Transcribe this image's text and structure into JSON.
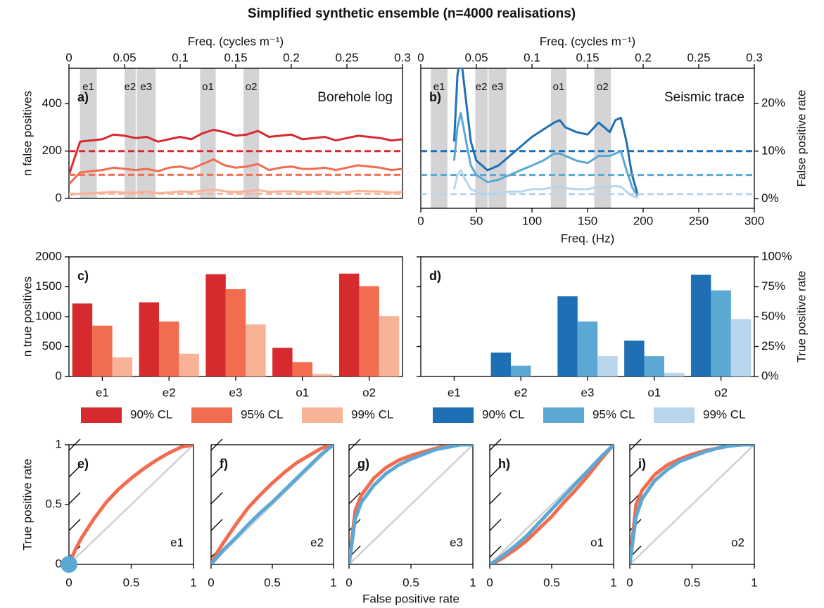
{
  "title": "Simplified synthetic ensemble (n=4000 realisations)",
  "chart_data": [
    {
      "type": "line",
      "panel_label": "a)",
      "title": "Borehole log",
      "xlabel": "Freq. (cycles m⁻¹)",
      "x_axis_side": "top",
      "xlim": [
        0,
        0.3
      ],
      "xticks": [
        0,
        0.05,
        0.1,
        0.15,
        0.2,
        0.25,
        0.3
      ],
      "ylabel": "n false positives",
      "y_axis_side": "left",
      "ylim": [
        0,
        550
      ],
      "yticks": [
        0,
        200,
        400
      ],
      "bands": [
        {
          "label": "e1",
          "range": [
            0.01,
            0.025
          ]
        },
        {
          "label": "e2",
          "range": [
            0.05,
            0.06
          ]
        },
        {
          "label": "e3",
          "range": [
            0.061,
            0.078
          ]
        },
        {
          "label": "o1",
          "range": [
            0.118,
            0.132
          ]
        },
        {
          "label": "o2",
          "range": [
            0.157,
            0.171
          ]
        }
      ],
      "x": [
        0,
        0.01,
        0.02,
        0.03,
        0.04,
        0.05,
        0.06,
        0.07,
        0.08,
        0.09,
        0.1,
        0.11,
        0.12,
        0.13,
        0.14,
        0.15,
        0.16,
        0.17,
        0.18,
        0.19,
        0.2,
        0.21,
        0.22,
        0.23,
        0.24,
        0.25,
        0.26,
        0.27,
        0.28,
        0.29,
        0.3
      ],
      "series": [
        {
          "name": "90% CL",
          "color": "#d62a2e",
          "threshold": 200,
          "values": [
            100,
            240,
            245,
            250,
            270,
            265,
            255,
            260,
            240,
            250,
            260,
            250,
            275,
            290,
            280,
            265,
            270,
            285,
            260,
            265,
            270,
            250,
            255,
            260,
            245,
            255,
            265,
            260,
            255,
            245,
            250
          ]
        },
        {
          "name": "95% CL",
          "color": "#f26c4f",
          "threshold": 100,
          "values": [
            60,
            110,
            115,
            120,
            130,
            125,
            120,
            125,
            115,
            130,
            135,
            125,
            145,
            165,
            140,
            130,
            135,
            145,
            120,
            130,
            135,
            125,
            125,
            130,
            120,
            130,
            140,
            135,
            130,
            120,
            125
          ]
        },
        {
          "name": "99% CL",
          "color": "#f8b397",
          "threshold": 20,
          "values": [
            15,
            20,
            22,
            25,
            28,
            25,
            25,
            30,
            22,
            25,
            30,
            28,
            32,
            38,
            30,
            28,
            30,
            35,
            28,
            30,
            30,
            28,
            28,
            30,
            25,
            28,
            32,
            30,
            30,
            25,
            28
          ]
        }
      ]
    },
    {
      "type": "line",
      "panel_label": "b)",
      "title": "Seismic trace",
      "xlabel": "Freq. (Hz)",
      "x_axis_side": "bottom",
      "xlim": [
        0,
        300
      ],
      "xticks": [
        0,
        50,
        100,
        150,
        200,
        250,
        300
      ],
      "x2label": "Freq. (cycles m⁻¹)",
      "x2lim": [
        0,
        0.3
      ],
      "x2ticks": [
        0,
        0.05,
        0.1,
        0.15,
        0.2,
        0.25,
        0.3
      ],
      "ylabel": "False positive rate",
      "y_axis_side": "right",
      "ylim": [
        -2,
        27.4
      ],
      "yticks": [
        {
          "value": 0,
          "label": "0%"
        },
        {
          "value": 10,
          "label": "10%"
        },
        {
          "value": 20,
          "label": "20%"
        }
      ],
      "bands": [
        {
          "label": "e1",
          "range": [
            9,
            24
          ]
        },
        {
          "label": "e2",
          "range": [
            49,
            60
          ]
        },
        {
          "label": "e3",
          "range": [
            61,
            77
          ]
        },
        {
          "label": "o1",
          "range": [
            117,
            131
          ]
        },
        {
          "label": "o2",
          "range": [
            156,
            171
          ]
        }
      ],
      "x": [
        30,
        33,
        36,
        40,
        45,
        50,
        60,
        70,
        80,
        90,
        100,
        110,
        120,
        125,
        130,
        140,
        150,
        160,
        170,
        175,
        180,
        185,
        190,
        195
      ],
      "series": [
        {
          "name": "90% CL",
          "color": "#1f6fb4",
          "threshold": 10,
          "values": [
            12,
            26,
            30,
            22,
            12,
            8,
            6,
            7,
            9,
            11,
            13,
            14.5,
            16,
            16.5,
            15,
            14,
            13.5,
            16,
            14,
            16.5,
            17,
            12,
            5,
            1
          ]
        },
        {
          "name": "95% CL",
          "color": "#5ba8d4",
          "threshold": 5,
          "values": [
            8,
            15,
            18,
            13,
            7,
            5,
            3.5,
            4,
            5,
            6,
            7,
            8,
            9.5,
            9.5,
            9,
            8,
            7.5,
            9,
            9,
            9.5,
            10,
            6,
            2.5,
            0.5
          ]
        },
        {
          "name": "99% CL",
          "color": "#b8d5eb",
          "threshold": 1,
          "values": [
            2,
            5,
            6,
            4,
            2,
            1.5,
            1,
            1.2,
            1.5,
            1.5,
            2,
            2,
            2.5,
            2.5,
            2.2,
            2,
            2,
            2.5,
            2.5,
            2.7,
            2.5,
            1.5,
            0.6,
            0.2
          ]
        }
      ]
    },
    {
      "type": "bar",
      "panel_label": "c)",
      "ylabel": "n true positives",
      "y_axis_side": "left",
      "ylim": [
        0,
        2000
      ],
      "yticks": [
        0,
        500,
        1000,
        1500,
        2000
      ],
      "categories": [
        "e1",
        "e2",
        "e3",
        "o1",
        "o2"
      ],
      "series": [
        {
          "name": "90% CL",
          "color": "#d62a2e",
          "values": [
            1220,
            1240,
            1710,
            480,
            1720
          ]
        },
        {
          "name": "95% CL",
          "color": "#f26c4f",
          "values": [
            850,
            920,
            1460,
            240,
            1510
          ]
        },
        {
          "name": "99% CL",
          "color": "#f8b397",
          "values": [
            320,
            380,
            870,
            40,
            1010
          ]
        }
      ]
    },
    {
      "type": "bar",
      "panel_label": "d)",
      "ylabel": "True positive rate",
      "y_axis_side": "right",
      "ylim": [
        0,
        100
      ],
      "yticks": [
        {
          "value": 0,
          "label": "0%"
        },
        {
          "value": 25,
          "label": "25%"
        },
        {
          "value": 50,
          "label": "50%"
        },
        {
          "value": 75,
          "label": "75%"
        },
        {
          "value": 100,
          "label": "100%"
        }
      ],
      "categories": [
        "e1",
        "e2",
        "e3",
        "o1",
        "o2"
      ],
      "series": [
        {
          "name": "90% CL",
          "color": "#1f6fb4",
          "values": [
            0,
            20,
            67,
            30,
            85
          ]
        },
        {
          "name": "95% CL",
          "color": "#5ba8d4",
          "values": [
            0,
            9,
            46,
            17,
            72
          ]
        },
        {
          "name": "99% CL",
          "color": "#b8d5eb",
          "values": [
            0,
            0,
            17,
            3,
            48
          ]
        }
      ]
    },
    {
      "type": "line",
      "panel_label": "e)",
      "title": "e1",
      "ylabel": "True positive rate",
      "y_axis_side": "left",
      "xlim": [
        0,
        1
      ],
      "xticks": [
        0,
        0.5,
        1
      ],
      "ylim": [
        0,
        1
      ],
      "yticks": [
        0,
        0.5,
        1
      ],
      "x": [
        0,
        0.05,
        0.1,
        0.2,
        0.3,
        0.4,
        0.5,
        0.6,
        0.7,
        0.8,
        0.9,
        1
      ],
      "series": [
        {
          "color": "#f26c4f",
          "values": [
            0,
            0.12,
            0.22,
            0.38,
            0.52,
            0.63,
            0.72,
            0.8,
            0.87,
            0.93,
            0.98,
            1
          ]
        },
        {
          "color": "#5ba8d4",
          "x": [
            0
          ],
          "values": [
            0
          ]
        }
      ]
    },
    {
      "type": "line",
      "panel_label": "f)",
      "title": "e2",
      "xlim": [
        0,
        1
      ],
      "xticks": [
        0,
        0.5,
        1
      ],
      "ylim": [
        0,
        1
      ],
      "x": [
        0,
        0.05,
        0.1,
        0.2,
        0.3,
        0.4,
        0.5,
        0.6,
        0.7,
        0.8,
        0.9,
        1
      ],
      "series": [
        {
          "color": "#f26c4f",
          "values": [
            0,
            0.1,
            0.18,
            0.33,
            0.47,
            0.58,
            0.68,
            0.77,
            0.85,
            0.91,
            0.97,
            1
          ]
        },
        {
          "color": "#5ba8d4",
          "values": [
            0,
            0.06,
            0.12,
            0.22,
            0.33,
            0.43,
            0.52,
            0.62,
            0.72,
            0.82,
            0.92,
            1
          ]
        }
      ]
    },
    {
      "type": "line",
      "panel_label": "g)",
      "title": "e3",
      "xlabel": "False positive rate",
      "x_axis_side": "bottom",
      "xlim": [
        0,
        1
      ],
      "xticks": [
        0,
        0.5,
        1
      ],
      "ylim": [
        0,
        1
      ],
      "x": [
        0,
        0.05,
        0.1,
        0.2,
        0.3,
        0.4,
        0.5,
        0.6,
        0.7,
        0.8,
        0.9,
        1
      ],
      "series": [
        {
          "color": "#f26c4f",
          "values": [
            0,
            0.45,
            0.58,
            0.72,
            0.81,
            0.87,
            0.91,
            0.94,
            0.97,
            0.99,
            1,
            1
          ]
        },
        {
          "color": "#5ba8d4",
          "values": [
            0,
            0.38,
            0.52,
            0.66,
            0.76,
            0.83,
            0.88,
            0.92,
            0.96,
            0.98,
            1,
            1
          ]
        }
      ]
    },
    {
      "type": "line",
      "panel_label": "h)",
      "title": "o1",
      "xlim": [
        0,
        1
      ],
      "xticks": [
        0,
        0.5,
        1
      ],
      "ylim": [
        0,
        1
      ],
      "x": [
        0,
        0.05,
        0.1,
        0.2,
        0.3,
        0.4,
        0.5,
        0.6,
        0.7,
        0.8,
        0.9,
        1
      ],
      "series": [
        {
          "color": "#f26c4f",
          "values": [
            0,
            0.02,
            0.05,
            0.12,
            0.2,
            0.3,
            0.4,
            0.52,
            0.63,
            0.75,
            0.88,
            1
          ]
        },
        {
          "color": "#5ba8d4",
          "values": [
            0,
            0.03,
            0.07,
            0.15,
            0.24,
            0.35,
            0.46,
            0.57,
            0.68,
            0.79,
            0.9,
            1
          ]
        }
      ]
    },
    {
      "type": "line",
      "panel_label": "i)",
      "title": "o2",
      "xlim": [
        0,
        1
      ],
      "xticks": [
        0,
        0.5,
        1
      ],
      "ylim": [
        0,
        1
      ],
      "x": [
        0,
        0.05,
        0.1,
        0.2,
        0.3,
        0.4,
        0.5,
        0.6,
        0.7,
        0.8,
        0.9,
        1
      ],
      "series": [
        {
          "color": "#f26c4f",
          "values": [
            0,
            0.5,
            0.62,
            0.75,
            0.83,
            0.88,
            0.92,
            0.95,
            0.97,
            0.99,
            1,
            1
          ]
        },
        {
          "color": "#5ba8d4",
          "values": [
            0,
            0.4,
            0.55,
            0.7,
            0.79,
            0.86,
            0.9,
            0.94,
            0.97,
            0.99,
            1,
            1
          ]
        }
      ]
    }
  ]
}
